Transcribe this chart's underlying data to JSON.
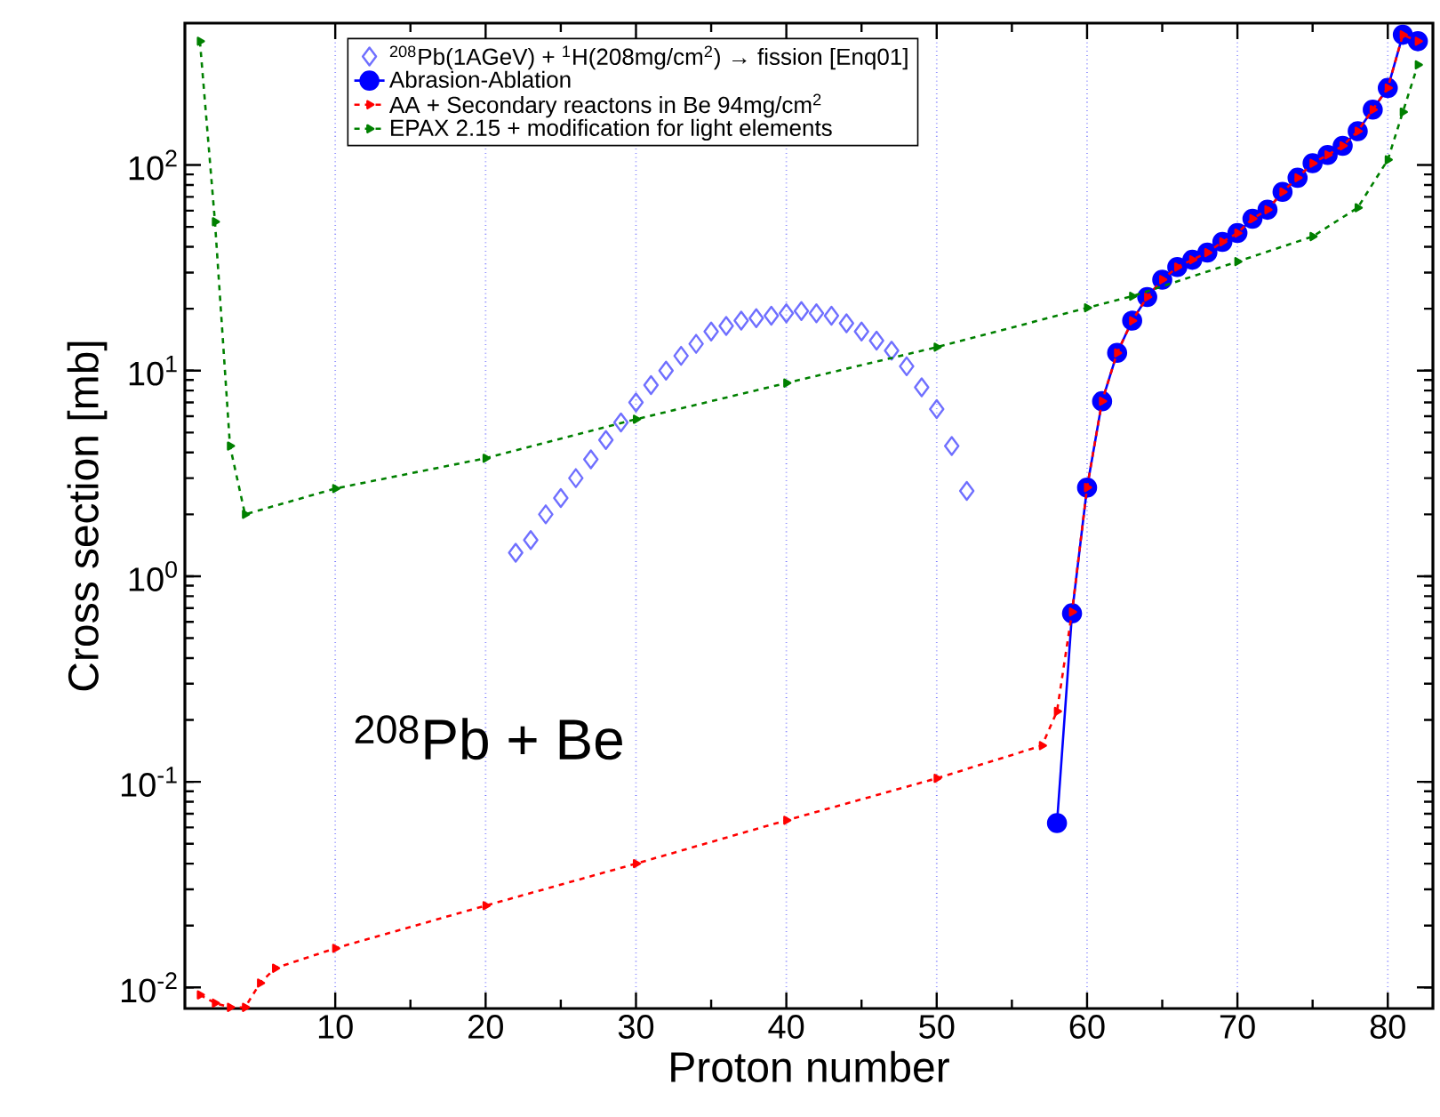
{
  "chart_data": {
    "type": "line",
    "xlabel": "Proton number",
    "ylabel": "Cross section [mb]",
    "annotations": [
      "$^{208}$Pb + Be"
    ],
    "xlim": [
      0,
      83
    ],
    "xticks": [
      10,
      20,
      30,
      40,
      50,
      60,
      70,
      80
    ],
    "ylim": [
      0.0079,
      490
    ],
    "log": "y",
    "yticks": [
      {
        "value": 0.01,
        "label": "10$^{-2}$"
      },
      {
        "value": 0.1,
        "label": "10$^{-1}$"
      },
      {
        "value": 1,
        "label": "10$^{0}$"
      },
      {
        "value": 10,
        "label": "10$^{1}$"
      },
      {
        "value": 100,
        "label": "10$^{2}$"
      }
    ],
    "grid": "x",
    "legend": "top",
    "series": [
      {
        "name": "$^{208}$Pb(1AGeV) + $^{1}$H(208mg/cm$^{2}$) → fission  [Enq01]",
        "type": "scatter",
        "color": "#6f6fff",
        "marker": "diamond",
        "x": [
          22,
          23,
          24,
          25,
          26,
          27,
          28,
          29,
          30,
          31,
          32,
          33,
          34,
          35,
          36,
          37,
          38,
          39,
          40,
          41,
          42,
          43,
          44,
          45,
          46,
          47,
          48,
          49,
          50,
          51,
          52
        ],
        "values": [
          1.3,
          1.5,
          2.0,
          2.4,
          3.0,
          3.7,
          4.6,
          5.6,
          7.0,
          8.5,
          10,
          11.8,
          13.5,
          15.5,
          16.5,
          17.5,
          18,
          18.5,
          19,
          19.5,
          19,
          18.5,
          17,
          15.5,
          14,
          12.5,
          10.5,
          8.3,
          6.5,
          4.3,
          2.6
        ]
      },
      {
        "name": "Abrasion-Ablation",
        "color": "#0000ff",
        "marker": "circle",
        "line_style": "solid",
        "x": [
          58,
          59,
          60,
          61,
          62,
          63,
          64,
          65,
          66,
          67,
          68,
          69,
          70,
          71,
          72,
          73,
          74,
          75,
          76,
          77,
          78,
          79,
          80,
          81,
          82
        ],
        "values": [
          0.063,
          0.66,
          2.7,
          7.1,
          12.2,
          17.5,
          22.8,
          27.7,
          31.9,
          34.6,
          37.5,
          42.3,
          46.7,
          54.8,
          60.6,
          74,
          86.7,
          102,
          112,
          124,
          146,
          186,
          237,
          430,
          400
        ]
      },
      {
        "name": "AA + Secondary reactons in Be 94mg/cm$^{2}$",
        "color": "#ff0000",
        "marker": "triangle",
        "line_style": "dashed",
        "x": [
          1,
          2,
          3,
          4,
          5,
          6,
          10,
          20,
          30,
          40,
          50,
          57,
          58,
          59,
          60,
          61,
          62,
          63,
          64,
          65,
          66,
          67,
          68,
          69,
          70,
          71,
          72,
          73,
          74,
          75,
          76,
          77,
          78,
          79,
          80,
          81,
          82
        ],
        "values": [
          0.0092,
          0.0084,
          0.008,
          0.008,
          0.0105,
          0.0124,
          0.0155,
          0.025,
          0.04,
          0.065,
          0.104,
          0.15,
          0.22,
          0.67,
          2.7,
          7.1,
          12.2,
          17.5,
          22.8,
          27.7,
          31.9,
          34.6,
          37.5,
          42.3,
          46.7,
          54.8,
          60.6,
          74,
          86.7,
          102,
          112,
          124,
          146,
          186,
          237,
          430,
          400
        ]
      },
      {
        "name": "EPAX 2.15 + modification for light elements",
        "color": "#008000",
        "marker": "triangle",
        "line_style": "dashed",
        "x": [
          1,
          2,
          3,
          4,
          10,
          20,
          30,
          40,
          50,
          60,
          63,
          70,
          75,
          78,
          80,
          81,
          82
        ],
        "values": [
          400,
          53,
          4.3,
          2.0,
          2.67,
          3.75,
          5.8,
          8.7,
          13,
          20.2,
          23,
          33.9,
          44.9,
          62,
          106,
          181,
          307
        ]
      }
    ]
  }
}
